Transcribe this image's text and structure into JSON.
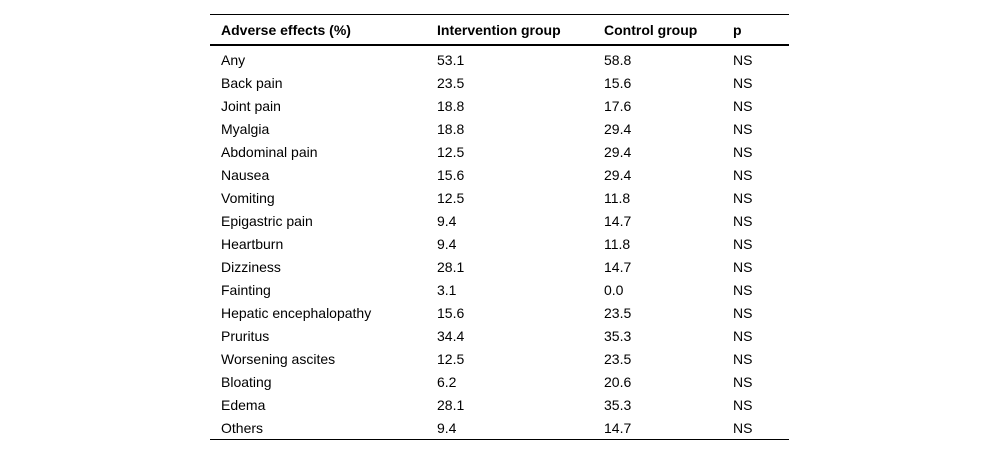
{
  "colors": {
    "background": "#ffffff",
    "text": "#000000",
    "rule": "#000000"
  },
  "table": {
    "columns": [
      "Adverse effects (%)",
      "Intervention group",
      "Control group",
      "p"
    ],
    "rows": [
      {
        "effect": "Any",
        "intervention": "53.1",
        "control": "58.8",
        "p": "NS"
      },
      {
        "effect": "Back pain",
        "intervention": "23.5",
        "control": "15.6",
        "p": "NS"
      },
      {
        "effect": "Joint pain",
        "intervention": "18.8",
        "control": "17.6",
        "p": "NS"
      },
      {
        "effect": "Myalgia",
        "intervention": "18.8",
        "control": "29.4",
        "p": "NS"
      },
      {
        "effect": "Abdominal pain",
        "intervention": "12.5",
        "control": "29.4",
        "p": "NS"
      },
      {
        "effect": "Nausea",
        "intervention": "15.6",
        "control": "29.4",
        "p": "NS"
      },
      {
        "effect": "Vomiting",
        "intervention": "12.5",
        "control": "11.8",
        "p": "NS"
      },
      {
        "effect": "Epigastric pain",
        "intervention": "9.4",
        "control": "14.7",
        "p": "NS"
      },
      {
        "effect": "Heartburn",
        "intervention": "9.4",
        "control": "11.8",
        "p": "NS"
      },
      {
        "effect": "Dizziness",
        "intervention": "28.1",
        "control": "14.7",
        "p": "NS"
      },
      {
        "effect": "Fainting",
        "intervention": "3.1",
        "control": "0.0",
        "p": "NS"
      },
      {
        "effect": "Hepatic encephalopathy",
        "intervention": "15.6",
        "control": "23.5",
        "p": "NS"
      },
      {
        "effect": "Pruritus",
        "intervention": "34.4",
        "control": "35.3",
        "p": "NS"
      },
      {
        "effect": "Worsening ascites",
        "intervention": "12.5",
        "control": "23.5",
        "p": "NS"
      },
      {
        "effect": "Bloating",
        "intervention": "6.2",
        "control": "20.6",
        "p": "NS"
      },
      {
        "effect": "Edema",
        "intervention": "28.1",
        "control": "35.3",
        "p": "NS"
      },
      {
        "effect": "Others",
        "intervention": "9.4",
        "control": "14.7",
        "p": "NS"
      }
    ]
  }
}
